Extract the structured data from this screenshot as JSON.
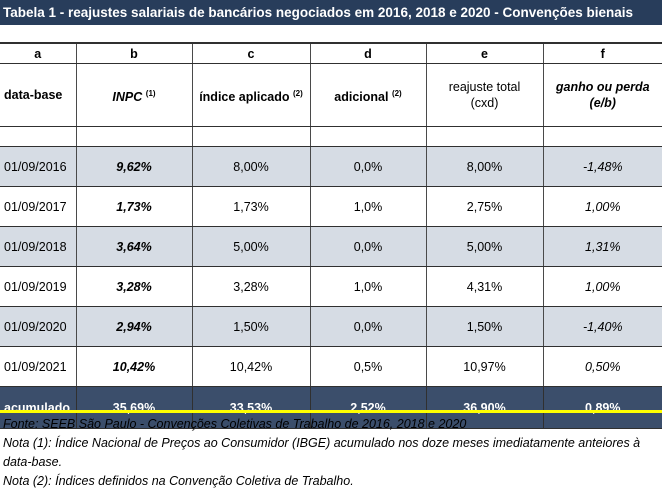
{
  "title": "Tabela 1 - reajustes salariais de bancários negociados em 2016, 2018 e 2020 - Convenções bienais",
  "column_letters": [
    "a",
    "b",
    "c",
    "d",
    "e",
    "f"
  ],
  "headers": {
    "data_base": "data-base",
    "inpc": "INPC",
    "inpc_note": "(1)",
    "indice": "índice aplicado",
    "indice_note": "(2)",
    "adicional": "adicional",
    "adicional_note": "(2)",
    "reajuste_line1": "reajuste total",
    "reajuste_line2": "(cxd)",
    "ganho_line1": "ganho ou perda",
    "ganho_line2": "(e/b)"
  },
  "rows": [
    {
      "date": "01/09/2016",
      "inpc": "9,62%",
      "indice": "8,00%",
      "adicional": "0,0%",
      "reajuste": "8,00%",
      "ganho": "-1,48%"
    },
    {
      "date": "01/09/2017",
      "inpc": "1,73%",
      "indice": "1,73%",
      "adicional": "1,0%",
      "reajuste": "2,75%",
      "ganho": "1,00%"
    },
    {
      "date": "01/09/2018",
      "inpc": "3,64%",
      "indice": "5,00%",
      "adicional": "0,0%",
      "reajuste": "5,00%",
      "ganho": "1,31%"
    },
    {
      "date": "01/09/2019",
      "inpc": "3,28%",
      "indice": "3,28%",
      "adicional": "1,0%",
      "reajuste": "4,31%",
      "ganho": "1,00%"
    },
    {
      "date": "01/09/2020",
      "inpc": "2,94%",
      "indice": "1,50%",
      "adicional": "0,0%",
      "reajuste": "1,50%",
      "ganho": "-1,40%"
    },
    {
      "date": "01/09/2021",
      "inpc": "10,42%",
      "indice": "10,42%",
      "adicional": "0,5%",
      "reajuste": "10,97%",
      "ganho": "0,50%"
    }
  ],
  "total": {
    "label": "acumulado",
    "inpc": "35,69%",
    "indice": "33,53%",
    "adicional": "2,52%",
    "reajuste": "36,90%",
    "ganho": "0,89%"
  },
  "notes": [
    "Fonte: SEEB São Paulo - Convenções Coletivas de Trabalho de 2016, 2018 e 2020",
    "Nota (1): Índice Nacional de Preços ao Consumidor (IBGE) acumulado nos doze meses imediatamente anteiores à data-base.",
    "Nota (2): Índices definidos na Convenção Coletiva de Trabalho."
  ],
  "colors": {
    "title_bg": "#283d5b",
    "shade_row": "#d6dce4",
    "total_bg": "#3b4e6b",
    "accent_line": "#ffff00"
  }
}
